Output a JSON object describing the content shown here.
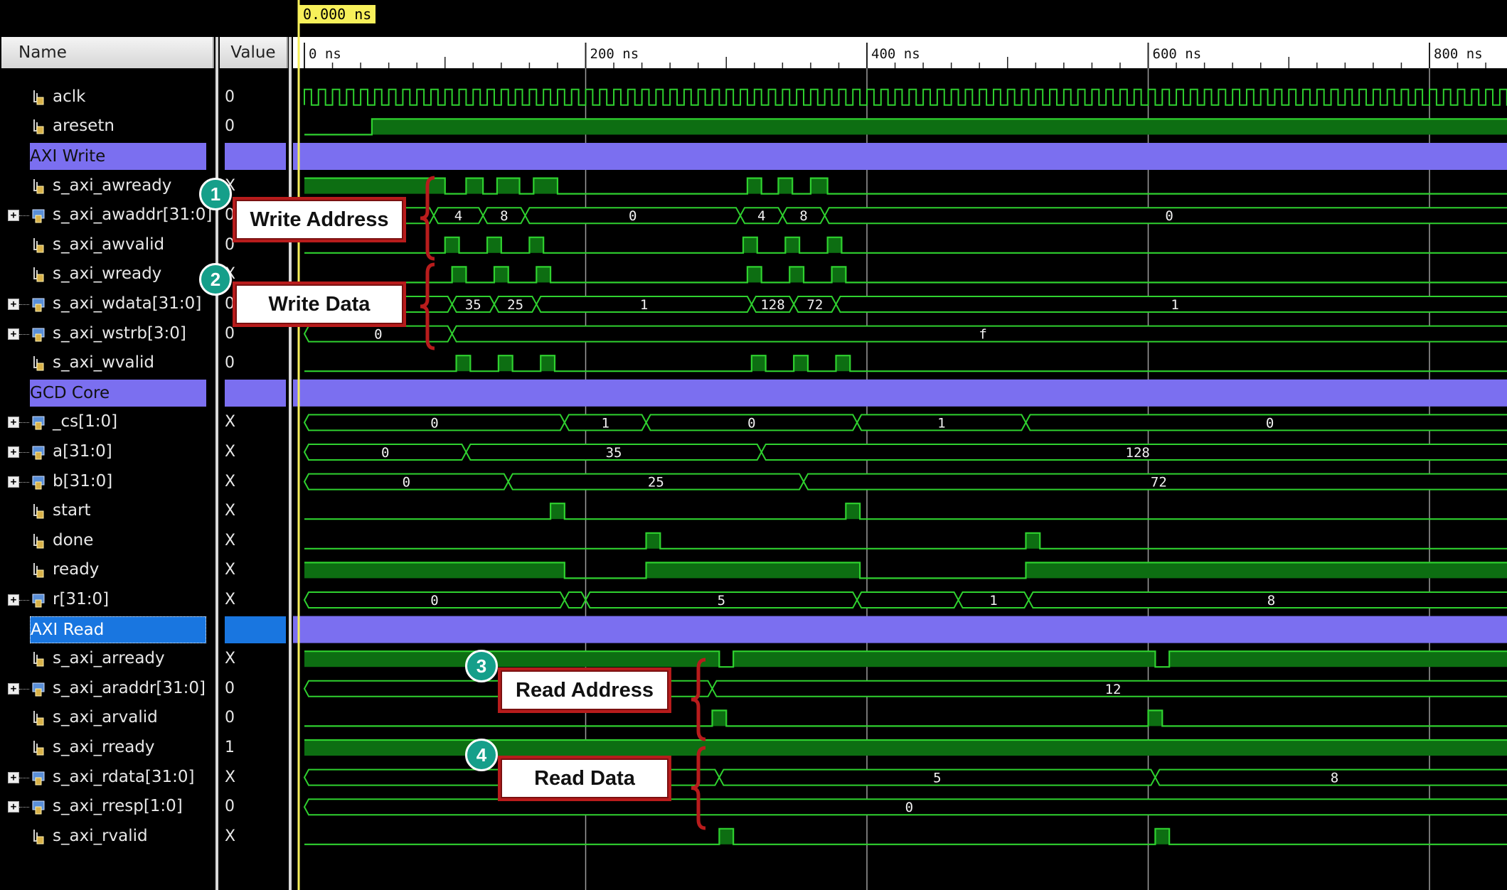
{
  "header": {
    "name_col": "Name",
    "value_col": "Value"
  },
  "cursor_time": "0.000 ns",
  "time_axis": {
    "labels": [
      "0 ns",
      "200 ns",
      "400 ns",
      "600 ns",
      "800 ns"
    ],
    "end_ns": 860
  },
  "colors": {
    "background": "#000000",
    "wave": "#2fd12f",
    "wave_fill": "#0d6e12",
    "group": "#7b6ff0",
    "group_selected": "#1976e0",
    "cursor": "#f7f05a",
    "callout_border": "#b81c1c",
    "badge": "#159f8a",
    "grid": "#d0d0d0"
  },
  "rows": [
    {
      "type": "signal",
      "name": "aclk",
      "value": "0",
      "kind": "bit",
      "icon": "bit-signal-icon"
    },
    {
      "type": "signal",
      "name": "aresetn",
      "value": "0",
      "kind": "bit",
      "icon": "bit-signal-icon"
    },
    {
      "type": "group",
      "name": "AXI Write",
      "selected": false
    },
    {
      "type": "signal",
      "name": "s_axi_awready",
      "value": "X",
      "kind": "bit",
      "icon": "bit-signal-icon"
    },
    {
      "type": "signal",
      "name": "s_axi_awaddr[31:0]",
      "value": "0",
      "kind": "bus",
      "icon": "bus-signal-icon"
    },
    {
      "type": "signal",
      "name": "s_axi_awvalid",
      "value": "0",
      "kind": "bit",
      "icon": "bit-signal-icon"
    },
    {
      "type": "signal",
      "name": "s_axi_wready",
      "value": "X",
      "kind": "bit",
      "icon": "bit-signal-icon"
    },
    {
      "type": "signal",
      "name": "s_axi_wdata[31:0]",
      "value": "0",
      "kind": "bus",
      "icon": "bus-signal-icon"
    },
    {
      "type": "signal",
      "name": "s_axi_wstrb[3:0]",
      "value": "0",
      "kind": "bus",
      "icon": "bus-signal-icon"
    },
    {
      "type": "signal",
      "name": "s_axi_wvalid",
      "value": "0",
      "kind": "bit",
      "icon": "bit-signal-icon"
    },
    {
      "type": "group",
      "name": "GCD Core",
      "selected": false
    },
    {
      "type": "signal",
      "name": "_cs[1:0]",
      "value": "X",
      "kind": "bus",
      "icon": "bus-signal-icon"
    },
    {
      "type": "signal",
      "name": "a[31:0]",
      "value": "X",
      "kind": "bus",
      "icon": "bus-signal-icon"
    },
    {
      "type": "signal",
      "name": "b[31:0]",
      "value": "X",
      "kind": "bus",
      "icon": "bus-signal-icon"
    },
    {
      "type": "signal",
      "name": "start",
      "value": "X",
      "kind": "bit",
      "icon": "bit-signal-icon"
    },
    {
      "type": "signal",
      "name": "done",
      "value": "X",
      "kind": "bit",
      "icon": "bit-signal-icon"
    },
    {
      "type": "signal",
      "name": "ready",
      "value": "X",
      "kind": "bit",
      "icon": "bit-signal-icon"
    },
    {
      "type": "signal",
      "name": "r[31:0]",
      "value": "X",
      "kind": "bus",
      "icon": "bus-signal-icon"
    },
    {
      "type": "group",
      "name": "AXI Read",
      "selected": true
    },
    {
      "type": "signal",
      "name": "s_axi_arready",
      "value": "X",
      "kind": "bit",
      "icon": "bit-signal-icon"
    },
    {
      "type": "signal",
      "name": "s_axi_araddr[31:0]",
      "value": "0",
      "kind": "bus",
      "icon": "bus-signal-icon"
    },
    {
      "type": "signal",
      "name": "s_axi_arvalid",
      "value": "0",
      "kind": "bit",
      "icon": "bit-signal-icon"
    },
    {
      "type": "signal",
      "name": "s_axi_rready",
      "value": "1",
      "kind": "bit",
      "icon": "bit-signal-icon"
    },
    {
      "type": "signal",
      "name": "s_axi_rdata[31:0]",
      "value": "X",
      "kind": "bus",
      "icon": "bus-signal-icon"
    },
    {
      "type": "signal",
      "name": "s_axi_rresp[1:0]",
      "value": "0",
      "kind": "bus",
      "icon": "bus-signal-icon"
    },
    {
      "type": "signal",
      "name": "s_axi_rvalid",
      "value": "X",
      "kind": "bit",
      "icon": "bit-signal-icon"
    }
  ],
  "waves": {
    "aresetn": {
      "init": 0,
      "edges": [
        48
      ]
    },
    "s_axi_awready": {
      "init": 1,
      "edges": [
        100,
        115,
        127,
        137,
        153,
        163,
        180,
        315,
        325,
        337,
        347,
        360,
        372
      ]
    },
    "s_axi_awaddr[31:0]": {
      "segments": [
        [
          0,
          92,
          ""
        ],
        [
          92,
          127,
          "4"
        ],
        [
          127,
          157,
          "8"
        ],
        [
          157,
          310,
          "0"
        ],
        [
          310,
          340,
          "4"
        ],
        [
          340,
          370,
          "8"
        ],
        [
          370,
          860,
          "0"
        ]
      ]
    },
    "s_axi_awvalid": {
      "init": 0,
      "edges": [
        100,
        110,
        130,
        140,
        160,
        170,
        312,
        322,
        342,
        352,
        372,
        382
      ]
    },
    "s_axi_wready": {
      "init": 0,
      "edges": [
        105,
        115,
        135,
        145,
        165,
        175,
        315,
        325,
        345,
        355,
        375,
        385
      ]
    },
    "s_axi_wdata[31:0]": {
      "segments": [
        [
          0,
          105,
          ""
        ],
        [
          105,
          135,
          "35"
        ],
        [
          135,
          165,
          "25"
        ],
        [
          165,
          318,
          "1"
        ],
        [
          318,
          348,
          "128"
        ],
        [
          348,
          378,
          "72"
        ],
        [
          378,
          860,
          "1"
        ]
      ]
    },
    "s_axi_wstrb[3:0]": {
      "segments": [
        [
          0,
          105,
          "0"
        ],
        [
          105,
          860,
          "f"
        ]
      ]
    },
    "s_axi_wvalid": {
      "init": 0,
      "edges": [
        108,
        118,
        138,
        148,
        168,
        178,
        318,
        328,
        348,
        358,
        378,
        388
      ]
    },
    "_cs[1:0]": {
      "segments": [
        [
          0,
          185,
          "0"
        ],
        [
          185,
          243,
          "1"
        ],
        [
          243,
          393,
          "0"
        ],
        [
          393,
          513,
          "1"
        ],
        [
          513,
          860,
          "0"
        ]
      ]
    },
    "a[31:0]": {
      "segments": [
        [
          0,
          115,
          "0"
        ],
        [
          115,
          325,
          "35"
        ],
        [
          325,
          860,
          "128"
        ]
      ]
    },
    "b[31:0]": {
      "segments": [
        [
          0,
          145,
          "0"
        ],
        [
          145,
          355,
          "25"
        ],
        [
          355,
          860,
          "72"
        ]
      ]
    },
    "start": {
      "init": 0,
      "edges": [
        175,
        185,
        385,
        395
      ]
    },
    "done": {
      "init": 0,
      "edges": [
        243,
        253,
        513,
        523
      ]
    },
    "ready": {
      "init": 1,
      "edges": [
        185,
        243,
        395,
        513
      ]
    },
    "r[31:0]": {
      "segments": [
        [
          0,
          185,
          "0"
        ],
        [
          185,
          200,
          ""
        ],
        [
          200,
          393,
          "5"
        ],
        [
          393,
          465,
          ""
        ],
        [
          465,
          515,
          "1"
        ],
        [
          515,
          860,
          "8"
        ]
      ]
    },
    "s_axi_arready": {
      "init": 1,
      "edges": [
        295,
        305,
        605,
        615
      ]
    },
    "s_axi_araddr[31:0]": {
      "segments": [
        [
          0,
          290,
          ""
        ],
        [
          290,
          860,
          "12"
        ]
      ]
    },
    "s_axi_arvalid": {
      "init": 0,
      "edges": [
        290,
        300,
        600,
        610
      ]
    },
    "s_axi_rready": {
      "init": 1,
      "edges": []
    },
    "s_axi_rdata[31:0]": {
      "segments": [
        [
          0,
          295,
          ""
        ],
        [
          295,
          605,
          "5"
        ],
        [
          605,
          860,
          "8"
        ]
      ]
    },
    "s_axi_rresp[1:0]": {
      "segments": [
        [
          0,
          860,
          "0"
        ]
      ]
    },
    "s_axi_rvalid": {
      "init": 0,
      "edges": [
        295,
        305,
        605,
        615
      ]
    }
  },
  "callouts": [
    {
      "num": "1",
      "label": "Write Address"
    },
    {
      "num": "2",
      "label": "Write Data"
    },
    {
      "num": "3",
      "label": "Read Address"
    },
    {
      "num": "4",
      "label": "Read Data"
    }
  ]
}
